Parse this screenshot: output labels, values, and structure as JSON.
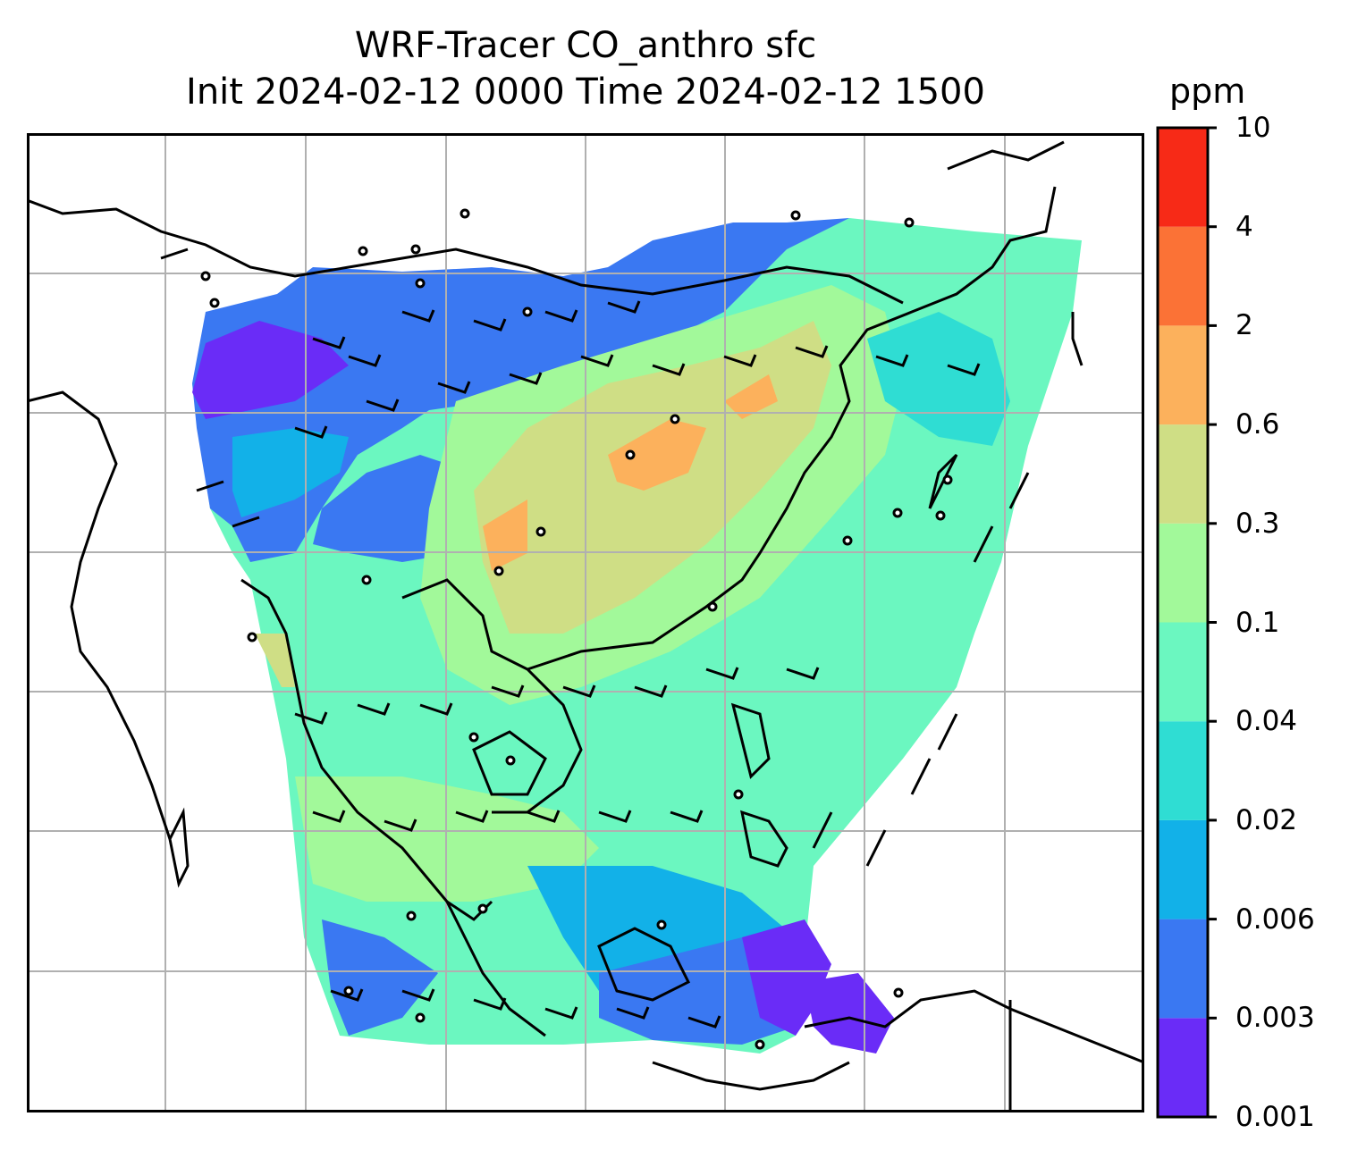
{
  "title": {
    "line1": "WRF-Tracer CO_anthro sfc",
    "line2": "Init 2024-02-12 0000 Time 2024-02-12 1500"
  },
  "colorbar": {
    "units": "ppm",
    "levels": [
      "0.001",
      "0.003",
      "0.006",
      "0.02",
      "0.04",
      "0.1",
      "0.3",
      "0.6",
      "2",
      "4",
      "10"
    ],
    "colors": [
      "#6a2cf7",
      "#3a78f2",
      "#12b1e8",
      "#2fddd3",
      "#6bf7c0",
      "#a2f99a",
      "#cfde85",
      "#fcb15c",
      "#fb7236",
      "#f72a17"
    ]
  },
  "map": {
    "gridlines": true,
    "land_outline_color": "#000000",
    "grid_color": "#b0b0b0",
    "field_colors": {
      "very_low": "#6a2cf7",
      "low": "#3a78f2",
      "mid_low": "#12b1e8",
      "cyan": "#2fddd3",
      "aqua": "#6bf7c0",
      "green": "#a2f99a",
      "olive": "#cfde85",
      "orange": "#fcb15c"
    }
  }
}
